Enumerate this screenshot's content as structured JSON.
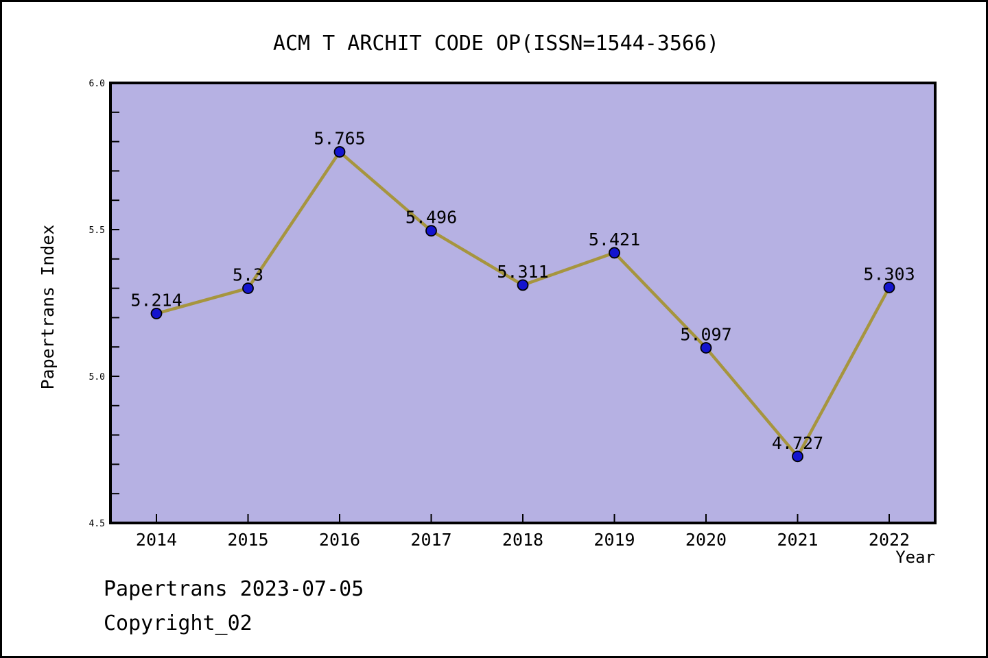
{
  "header": {
    "title": "ACM T ARCHIT CODE OP(ISSN=1544-3566)"
  },
  "footer": {
    "line1": "Papertrans 2023-07-05",
    "line2": "Copyright_02"
  },
  "chart_data": {
    "type": "line",
    "title": "ACM T ARCHIT CODE OP(ISSN=1544-3566)",
    "xlabel": "Year",
    "ylabel": "Papertrans Index",
    "x": [
      2014,
      2015,
      2016,
      2017,
      2018,
      2019,
      2020,
      2021,
      2022
    ],
    "series": [
      {
        "name": "Papertrans Index",
        "values": [
          5.214,
          5.3,
          5.765,
          5.496,
          5.311,
          5.421,
          5.097,
          4.727,
          5.303
        ]
      }
    ],
    "point_labels": [
      "5.214",
      "5.3",
      "5.765",
      "5.496",
      "5.311",
      "5.421",
      "5.097",
      "4.727",
      "5.303"
    ],
    "ylim": [
      4.5,
      6.0
    ],
    "ytick_major": [
      4.5,
      5.0,
      5.5,
      6.0
    ],
    "ytick_labels": [
      "4.5",
      "5.0",
      "5.5",
      "6.0"
    ],
    "ytick_minor_step": 0.1,
    "grid": false,
    "legend": "none",
    "colors": {
      "plot_bg": "#b6b1e3",
      "line": "#a6953e",
      "marker": "#1414cf",
      "marker_edge": "#000000",
      "axis": "#000000",
      "text": "#000000"
    }
  }
}
